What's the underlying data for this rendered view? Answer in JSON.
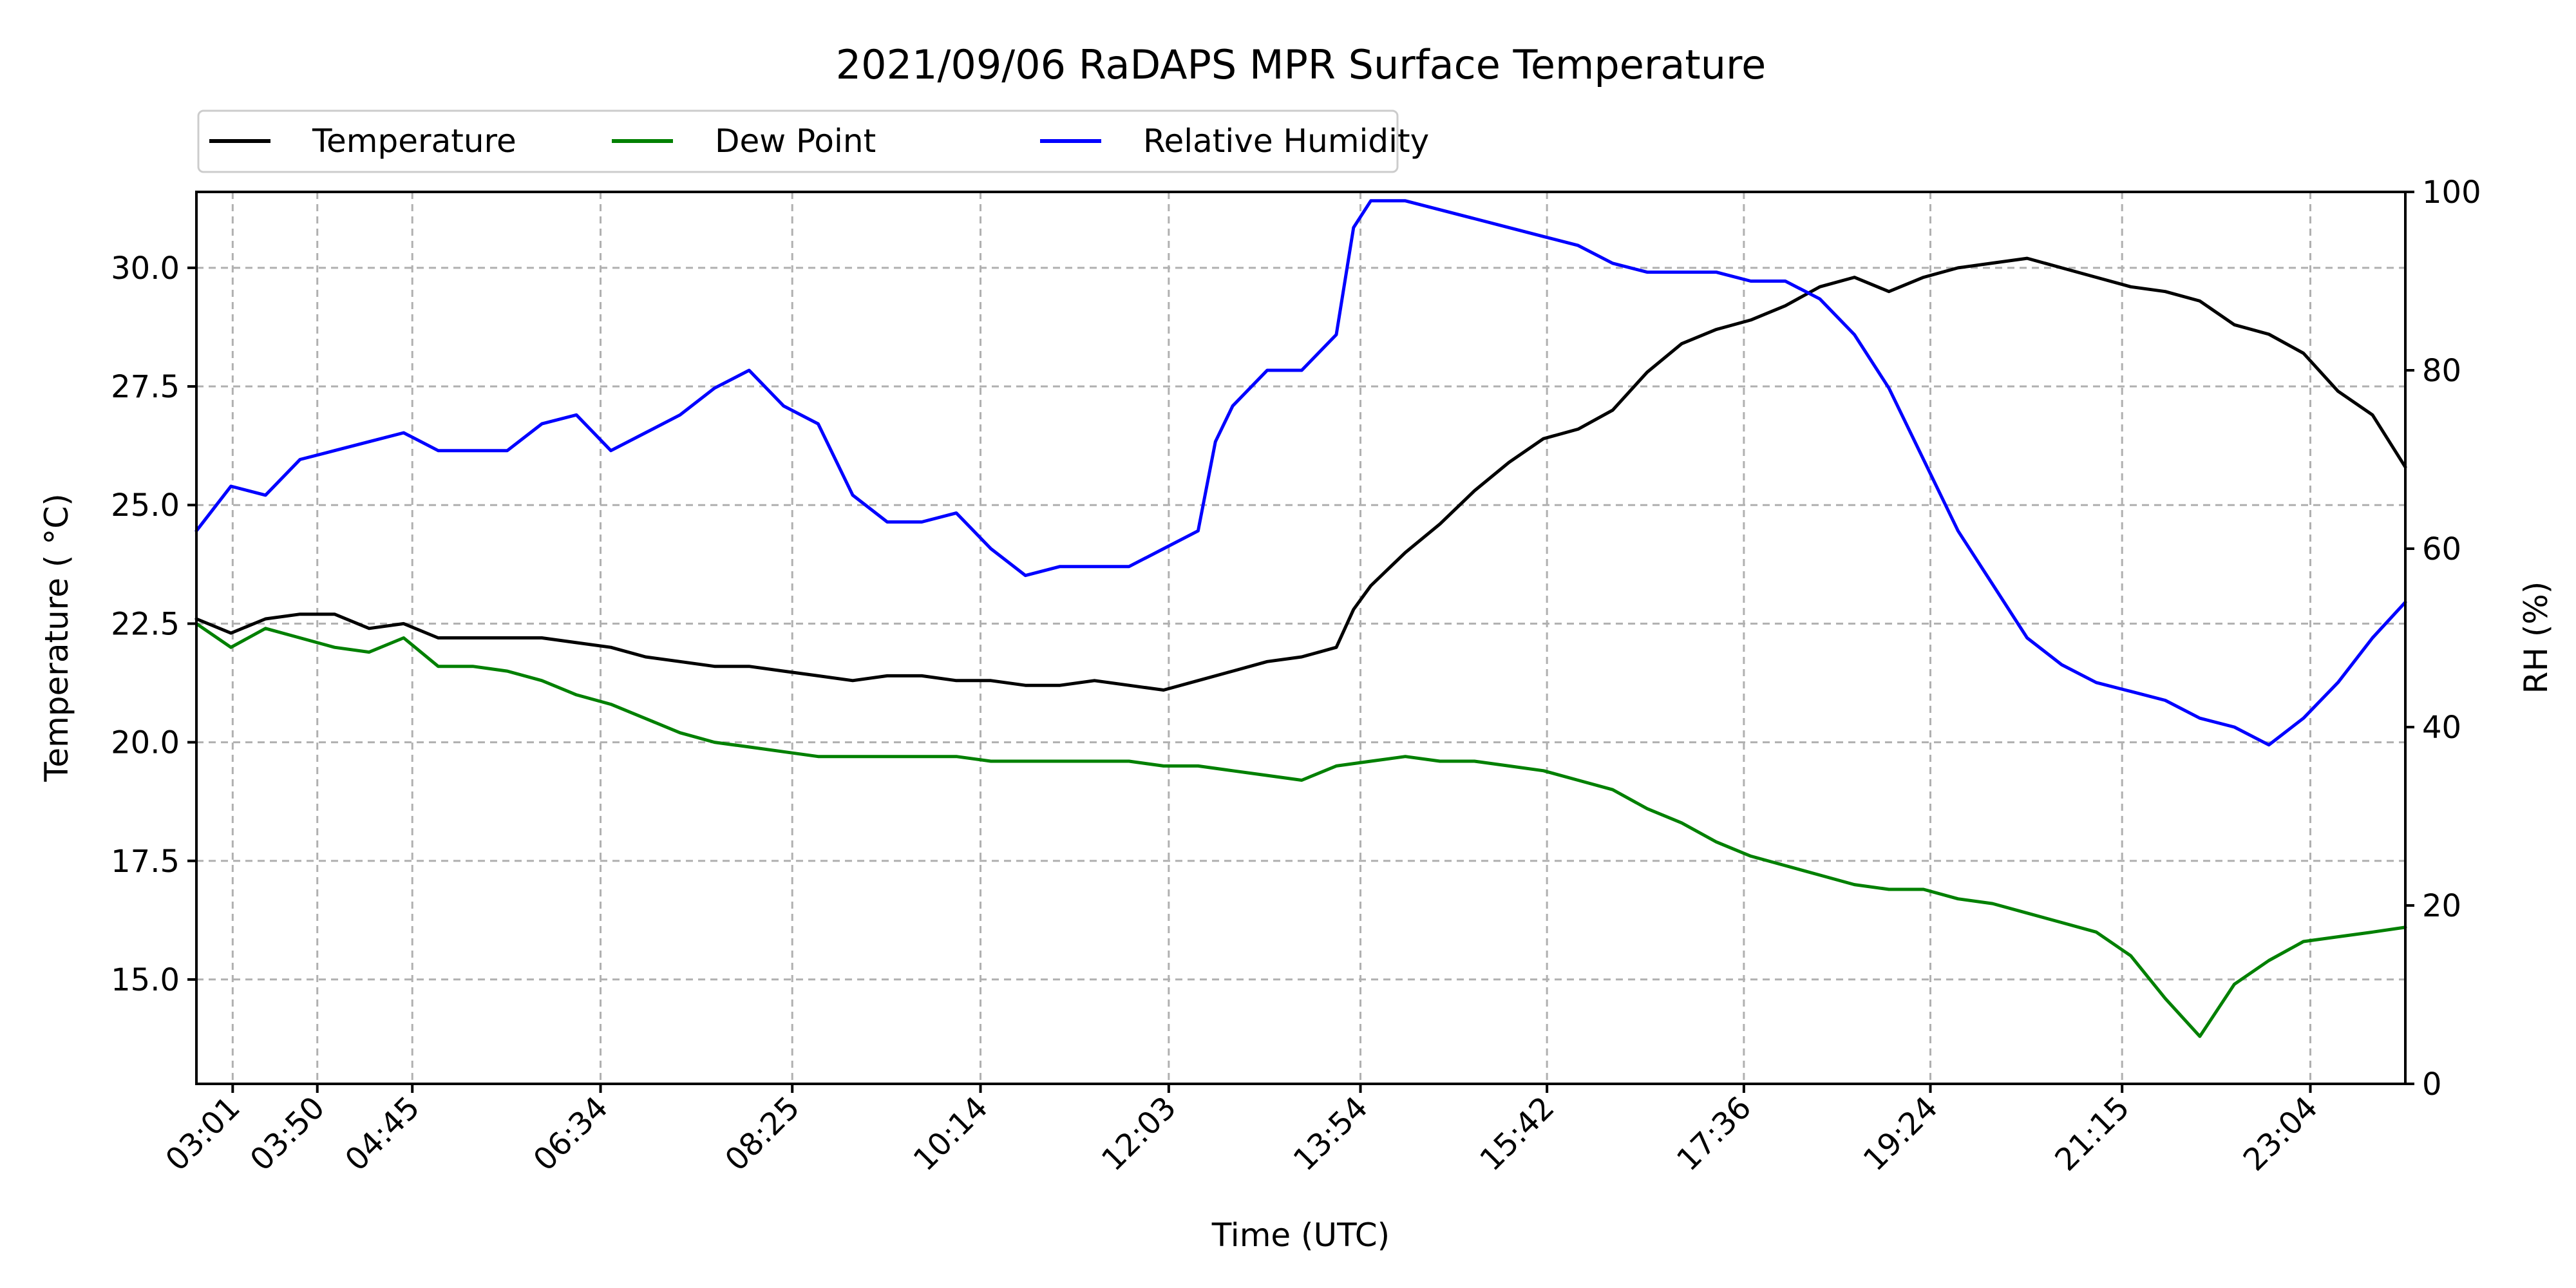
{
  "chart_data": {
    "type": "line",
    "title": "2021/09/06 RaDAPS MPR Surface Temperature",
    "xlabel": "Time (UTC)",
    "ylabel": "Temperature ($^\\circ$C)",
    "ylabel_display": "Temperature ( °C)",
    "y2label": "RH (%)",
    "xlim": [
      "02:40",
      "23:59"
    ],
    "ylim": [
      12.8,
      31.6
    ],
    "y2lim": [
      0,
      100
    ],
    "x_ticks": [
      "03:01",
      "03:50",
      "04:45",
      "06:34",
      "08:25",
      "10:14",
      "12:03",
      "13:54",
      "15:42",
      "17:36",
      "19:24",
      "21:15",
      "23:04"
    ],
    "y_ticks": [
      15.0,
      17.5,
      20.0,
      22.5,
      25.0,
      27.5,
      30.0
    ],
    "y_tick_labels": [
      "15.0",
      "17.5",
      "20.0",
      "22.5",
      "25.0",
      "27.5",
      "30.0"
    ],
    "y2_ticks": [
      0,
      20,
      40,
      60,
      80,
      100
    ],
    "y2_tick_labels": [
      "0",
      "20",
      "40",
      "60",
      "80",
      "100"
    ],
    "grid": true,
    "legend": {
      "placement": "above-left",
      "columns": 3
    },
    "series": [
      {
        "name": "Temperature",
        "color": "#000000",
        "axis": "left",
        "x": [
          "02:40",
          "03:00",
          "03:20",
          "03:40",
          "04:00",
          "04:20",
          "04:40",
          "05:00",
          "05:20",
          "05:40",
          "06:00",
          "06:20",
          "06:40",
          "07:00",
          "07:20",
          "07:40",
          "08:00",
          "08:20",
          "08:40",
          "09:00",
          "09:20",
          "09:40",
          "10:00",
          "10:20",
          "10:40",
          "11:00",
          "11:20",
          "11:40",
          "12:00",
          "12:20",
          "12:40",
          "13:00",
          "13:20",
          "13:40",
          "13:50",
          "14:00",
          "14:20",
          "14:40",
          "15:00",
          "15:20",
          "15:40",
          "16:00",
          "16:20",
          "16:40",
          "17:00",
          "17:20",
          "17:40",
          "18:00",
          "18:20",
          "18:40",
          "19:00",
          "19:20",
          "19:40",
          "20:00",
          "20:20",
          "20:40",
          "21:00",
          "21:20",
          "21:40",
          "22:00",
          "22:20",
          "22:40",
          "23:00",
          "23:20",
          "23:40",
          "23:59"
        ],
        "y": [
          22.6,
          22.3,
          22.6,
          22.7,
          22.7,
          22.4,
          22.5,
          22.2,
          22.2,
          22.2,
          22.2,
          22.1,
          22.0,
          21.8,
          21.7,
          21.6,
          21.6,
          21.5,
          21.4,
          21.3,
          21.4,
          21.4,
          21.3,
          21.3,
          21.2,
          21.2,
          21.3,
          21.2,
          21.1,
          21.3,
          21.5,
          21.7,
          21.8,
          22.0,
          22.8,
          23.3,
          24.0,
          24.6,
          25.3,
          25.9,
          26.4,
          26.6,
          27.0,
          27.8,
          28.4,
          28.7,
          28.9,
          29.2,
          29.6,
          29.8,
          29.5,
          29.8,
          30.0,
          30.1,
          30.2,
          30.0,
          29.8,
          29.6,
          29.5,
          29.3,
          28.8,
          28.6,
          28.2,
          27.4,
          26.9,
          25.8
        ]
      },
      {
        "name": "Dew Point",
        "color": "#008000",
        "axis": "left",
        "x": [
          "02:40",
          "03:00",
          "03:20",
          "03:40",
          "04:00",
          "04:20",
          "04:40",
          "05:00",
          "05:20",
          "05:40",
          "06:00",
          "06:20",
          "06:40",
          "07:00",
          "07:20",
          "07:40",
          "08:00",
          "08:20",
          "08:40",
          "09:00",
          "09:20",
          "09:40",
          "10:00",
          "10:20",
          "10:40",
          "11:00",
          "11:20",
          "11:40",
          "12:00",
          "12:20",
          "12:40",
          "13:00",
          "13:20",
          "13:40",
          "14:00",
          "14:20",
          "14:40",
          "15:00",
          "15:20",
          "15:40",
          "16:00",
          "16:20",
          "16:40",
          "17:00",
          "17:20",
          "17:40",
          "18:00",
          "18:20",
          "18:40",
          "19:00",
          "19:20",
          "19:40",
          "20:00",
          "20:20",
          "20:40",
          "21:00",
          "21:20",
          "21:40",
          "22:00",
          "22:20",
          "22:40",
          "23:00",
          "23:20",
          "23:40",
          "23:59"
        ],
        "y": [
          22.5,
          22.0,
          22.4,
          22.2,
          22.0,
          21.9,
          22.2,
          21.6,
          21.6,
          21.5,
          21.3,
          21.0,
          20.8,
          20.5,
          20.2,
          20.0,
          19.9,
          19.8,
          19.7,
          19.7,
          19.7,
          19.7,
          19.7,
          19.6,
          19.6,
          19.6,
          19.6,
          19.6,
          19.5,
          19.5,
          19.4,
          19.3,
          19.2,
          19.5,
          19.6,
          19.7,
          19.6,
          19.6,
          19.5,
          19.4,
          19.2,
          19.0,
          18.6,
          18.3,
          17.9,
          17.6,
          17.4,
          17.2,
          17.0,
          16.9,
          16.9,
          16.7,
          16.6,
          16.4,
          16.2,
          16.0,
          15.5,
          14.6,
          13.8,
          14.9,
          15.4,
          15.8,
          15.9,
          16.0,
          16.1
        ]
      },
      {
        "name": "Relative Humidity",
        "color": "#0000ff",
        "axis": "right",
        "x": [
          "02:40",
          "03:00",
          "03:20",
          "03:40",
          "04:00",
          "04:20",
          "04:40",
          "05:00",
          "05:20",
          "05:40",
          "06:00",
          "06:20",
          "06:40",
          "07:00",
          "07:20",
          "07:40",
          "08:00",
          "08:20",
          "08:40",
          "09:00",
          "09:20",
          "09:40",
          "10:00",
          "10:20",
          "10:40",
          "11:00",
          "11:20",
          "11:40",
          "12:00",
          "12:20",
          "12:30",
          "12:40",
          "13:00",
          "13:20",
          "13:40",
          "13:50",
          "14:00",
          "14:20",
          "14:40",
          "15:00",
          "15:20",
          "15:40",
          "16:00",
          "16:20",
          "16:40",
          "17:00",
          "17:20",
          "17:40",
          "18:00",
          "18:20",
          "18:40",
          "19:00",
          "19:20",
          "19:40",
          "20:00",
          "20:20",
          "20:40",
          "21:00",
          "21:20",
          "21:40",
          "22:00",
          "22:20",
          "22:40",
          "23:00",
          "23:20",
          "23:40",
          "23:59"
        ],
        "y": [
          62,
          67,
          66,
          70,
          71,
          72,
          73,
          71,
          71,
          71,
          74,
          75,
          71,
          73,
          75,
          78,
          80,
          76,
          74,
          66,
          63,
          63,
          64,
          60,
          57,
          58,
          58,
          58,
          60,
          62,
          72,
          76,
          80,
          80,
          84,
          96,
          99,
          99,
          98,
          97,
          96,
          95,
          94,
          92,
          91,
          91,
          91,
          90,
          90,
          88,
          84,
          78,
          70,
          62,
          56,
          50,
          47,
          45,
          44,
          43,
          41,
          40,
          38,
          41,
          45,
          50,
          54
        ]
      }
    ]
  }
}
